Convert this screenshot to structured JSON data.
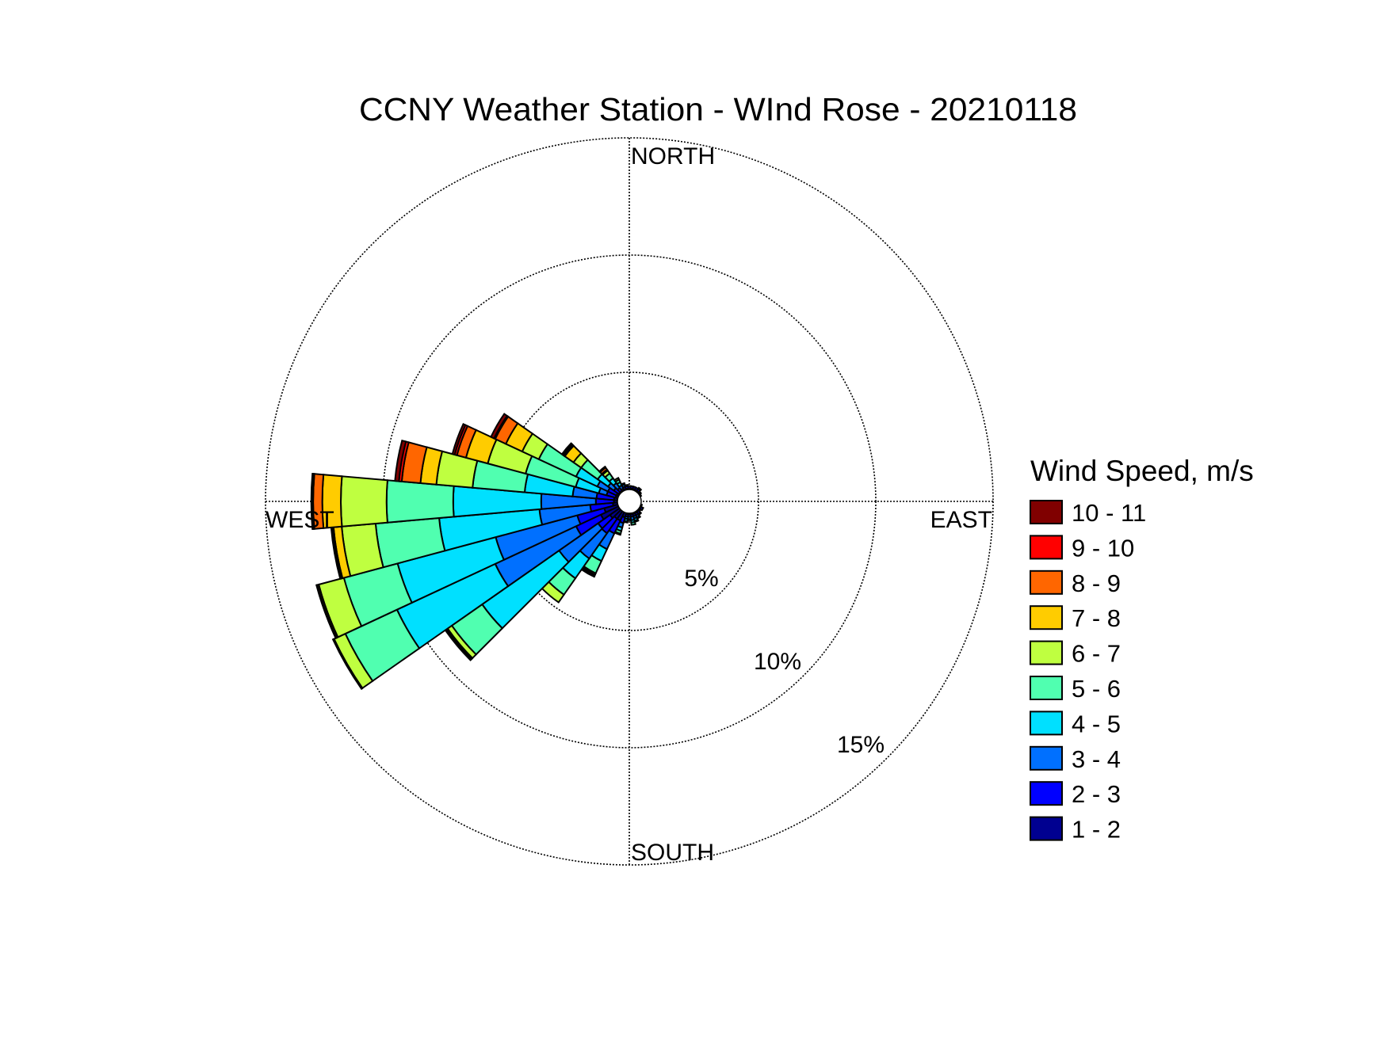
{
  "chart_data": {
    "type": "polar-bar",
    "subtype": "wind-rose",
    "title": "CCNY Weather Station - WInd Rose - 20210118",
    "compass_labels": {
      "north": "NORTH",
      "east": "EAST",
      "south": "SOUTH",
      "west": "WEST"
    },
    "radial_ticks": [
      {
        "value": 5,
        "label": "5%"
      },
      {
        "value": 10,
        "label": "10%"
      },
      {
        "value": 15,
        "label": "15%"
      }
    ],
    "radial_max": 15,
    "radial_unit": "percent of time",
    "grid": true,
    "sector_width_deg": 10,
    "legend": {
      "title": "Wind Speed, m/s",
      "placement": "right",
      "entries": [
        {
          "label": "10 - 11",
          "color": "#800000"
        },
        {
          "label": "9 - 10",
          "color": "#ff0000"
        },
        {
          "label": "8 - 9",
          "color": "#ff6600"
        },
        {
          "label": "7 - 8",
          "color": "#ffcc00"
        },
        {
          "label": "6 - 7",
          "color": "#bfff40"
        },
        {
          "label": "5 - 6",
          "color": "#50ffb0"
        },
        {
          "label": "4 - 5",
          "color": "#00e0ff"
        },
        {
          "label": "3 - 4",
          "color": "#0070ff"
        },
        {
          "label": "2 - 3",
          "color": "#0000ff"
        },
        {
          "label": "1 - 2",
          "color": "#000090"
        }
      ]
    },
    "bins_order": [
      "1 - 2",
      "2 - 3",
      "3 - 4",
      "4 - 5",
      "5 - 6",
      "6 - 7",
      "7 - 8",
      "8 - 9",
      "9 - 10",
      "10 - 11"
    ],
    "sectors": [
      {
        "direction": 0,
        "values": [
          0.05,
          0.1,
          0,
          0,
          0,
          0,
          0,
          0,
          0,
          0
        ]
      },
      {
        "direction": 10,
        "values": [
          0.05,
          0.1,
          0,
          0,
          0,
          0,
          0,
          0,
          0,
          0
        ]
      },
      {
        "direction": 20,
        "values": [
          0.05,
          0.1,
          0,
          0,
          0,
          0,
          0,
          0,
          0,
          0
        ]
      },
      {
        "direction": 30,
        "values": [
          0.05,
          0.1,
          0,
          0,
          0,
          0,
          0,
          0,
          0,
          0
        ]
      },
      {
        "direction": 40,
        "values": [
          0.05,
          0.1,
          0.05,
          0,
          0,
          0,
          0,
          0,
          0,
          0
        ]
      },
      {
        "direction": 50,
        "values": [
          0.05,
          0.05,
          0,
          0,
          0,
          0,
          0,
          0,
          0,
          0
        ]
      },
      {
        "direction": 60,
        "values": [
          0.05,
          0,
          0,
          0,
          0,
          0,
          0,
          0,
          0,
          0
        ]
      },
      {
        "direction": 70,
        "values": [
          0,
          0,
          0,
          0,
          0,
          0,
          0,
          0,
          0,
          0
        ]
      },
      {
        "direction": 80,
        "values": [
          0,
          0,
          0,
          0,
          0,
          0,
          0,
          0,
          0,
          0
        ]
      },
      {
        "direction": 90,
        "values": [
          0,
          0,
          0,
          0,
          0,
          0,
          0,
          0,
          0,
          0
        ]
      },
      {
        "direction": 100,
        "values": [
          0,
          0,
          0,
          0,
          0,
          0,
          0,
          0,
          0,
          0
        ]
      },
      {
        "direction": 110,
        "values": [
          0.05,
          0,
          0,
          0,
          0,
          0,
          0,
          0,
          0,
          0
        ]
      },
      {
        "direction": 120,
        "values": [
          0.05,
          0.1,
          0,
          0,
          0,
          0,
          0,
          0,
          0,
          0
        ]
      },
      {
        "direction": 130,
        "values": [
          0.05,
          0.05,
          0,
          0,
          0,
          0,
          0,
          0,
          0,
          0
        ]
      },
      {
        "direction": 140,
        "values": [
          0.05,
          0.1,
          0.05,
          0,
          0,
          0,
          0,
          0,
          0,
          0
        ]
      },
      {
        "direction": 150,
        "values": [
          0.05,
          0.1,
          0.1,
          0.05,
          0,
          0,
          0,
          0,
          0,
          0
        ]
      },
      {
        "direction": 160,
        "values": [
          0.05,
          0.1,
          0.1,
          0.1,
          0.05,
          0,
          0,
          0,
          0,
          0
        ]
      },
      {
        "direction": 170,
        "values": [
          0.05,
          0.1,
          0.15,
          0.1,
          0.1,
          0,
          0,
          0,
          0,
          0
        ]
      },
      {
        "direction": 180,
        "values": [
          0.05,
          0.1,
          0.1,
          0.05,
          0,
          0,
          0,
          0,
          0,
          0
        ]
      },
      {
        "direction": 190,
        "values": [
          0.05,
          0.1,
          0.1,
          0.1,
          0.05,
          0,
          0,
          0,
          0,
          0
        ]
      },
      {
        "direction": 200,
        "values": [
          0.2,
          0.25,
          0.2,
          0.15,
          0.12,
          0.05,
          0,
          0,
          0,
          0
        ]
      },
      {
        "direction": 210,
        "values": [
          0.4,
          0.6,
          0.74,
          0.56,
          0.58,
          0.07,
          0.05,
          0.02,
          0.01,
          0.01
        ]
      },
      {
        "direction": 220,
        "values": [
          0.4,
          0.75,
          1.32,
          1.03,
          0.85,
          0.4,
          0,
          0,
          0,
          0
        ]
      },
      {
        "direction": 230,
        "values": [
          0.5,
          0.62,
          2.03,
          4.0,
          1.58,
          0.22,
          0.02,
          0.03,
          0.03,
          0.04
        ]
      },
      {
        "direction": 240,
        "values": [
          0.83,
          1.17,
          3.8,
          4.62,
          2.43,
          0.53,
          0.02,
          0.01,
          0.01,
          0.01
        ]
      },
      {
        "direction": 250,
        "values": [
          0.6,
          1.19,
          3.6,
          4.33,
          2.37,
          1.11,
          0.07,
          0.01,
          0.01,
          0.01
        ]
      },
      {
        "direction": 260,
        "values": [
          0.2,
          0.97,
          2.17,
          4.29,
          2.72,
          1.45,
          0.35,
          0.02,
          0.03,
          0.05
        ]
      },
      {
        "direction": 270,
        "values": [
          0.15,
          0.77,
          2.33,
          3.75,
          2.84,
          1.95,
          0.79,
          0.39,
          0.05,
          0.03
        ]
      },
      {
        "direction": 280,
        "values": [
          0.15,
          0.75,
          1.02,
          2.05,
          2.23,
          1.55,
          0.68,
          0.8,
          0.12,
          0.17
        ]
      },
      {
        "direction": 290,
        "values": [
          0.1,
          0.4,
          0.34,
          1.02,
          2.21,
          1.67,
          0.96,
          0.4,
          0.1,
          0.1
        ]
      },
      {
        "direction": 300,
        "values": [
          0.1,
          0.4,
          0.5,
          1.0,
          1.75,
          0.78,
          0.77,
          0.5,
          0.05,
          0.15
        ]
      },
      {
        "direction": 310,
        "values": [
          0.05,
          0.25,
          0.3,
          0.54,
          0.86,
          0.4,
          0.45,
          0.05,
          0.05,
          0.05
        ]
      },
      {
        "direction": 320,
        "values": [
          0.05,
          0.15,
          0.25,
          0.25,
          0.25,
          0.15,
          0.05,
          0.1,
          0.03,
          0.02
        ]
      },
      {
        "direction": 330,
        "values": [
          0.02,
          0.08,
          0.15,
          0.15,
          0.12,
          0.08,
          0,
          0,
          0,
          0
        ]
      },
      {
        "direction": 340,
        "values": [
          0.05,
          0.1,
          0.1,
          0.05,
          0,
          0,
          0,
          0,
          0,
          0
        ]
      },
      {
        "direction": 350,
        "values": [
          0.05,
          0.1,
          0.05,
          0,
          0,
          0,
          0,
          0,
          0,
          0
        ]
      }
    ]
  }
}
